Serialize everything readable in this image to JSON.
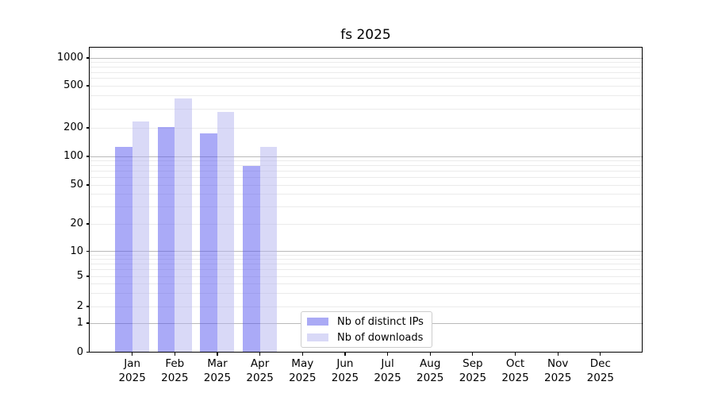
{
  "title": "fs 2025",
  "legend": {
    "items": [
      {
        "label": "Nb of distinct IPs",
        "color": "rgba(85,85,240,0.5)",
        "color_on_white": "#aaaaf5"
      },
      {
        "label": "Nb of downloads",
        "color": "rgba(180,180,240,0.5)",
        "color_on_white": "#d9d9f7"
      }
    ]
  },
  "chart_data": {
    "type": "bar",
    "title": "fs 2025",
    "categories": [
      "Jan 2025",
      "Feb 2025",
      "Mar 2025",
      "Apr 2025",
      "May 2025",
      "Jun 2025",
      "Jul 2025",
      "Aug 2025",
      "Sep 2025",
      "Oct 2025",
      "Nov 2025",
      "Dec 2025"
    ],
    "series": [
      {
        "name": "Nb of distinct IPs",
        "color": "rgba(85,85,240,0.5)",
        "values": [
          125,
          205,
          175,
          80,
          0,
          0,
          0,
          0,
          0,
          0,
          0,
          0
        ]
      },
      {
        "name": "Nb of downloads",
        "color": "rgba(180,180,240,0.5)",
        "values": [
          230,
          380,
          285,
          125,
          0,
          0,
          0,
          0,
          0,
          0,
          0,
          0
        ]
      }
    ],
    "xlabel": "",
    "ylabel": "",
    "y_scale": "symlog-like",
    "ylim": [
      0,
      1300
    ],
    "legend_position": "lower-center-left",
    "grid": {
      "major_color": "#b9b9b9",
      "minor_color": "#ebebeb",
      "major_values": [
        1,
        10,
        100,
        1000
      ],
      "minor_values": [
        2,
        3,
        4,
        5,
        6,
        7,
        8,
        9,
        20,
        30,
        40,
        50,
        60,
        70,
        80,
        90,
        200,
        300,
        400,
        500,
        600,
        700,
        800,
        900
      ]
    },
    "y_axis": {
      "ticks": [
        {
          "value": 0,
          "label": "0",
          "y": 443.5
        },
        {
          "value": 1,
          "label": "1",
          "y": 407
        },
        {
          "value": 2,
          "label": "2",
          "y": 386
        },
        {
          "value": 5,
          "label": "5",
          "y": 348
        },
        {
          "value": 10,
          "label": "10",
          "y": 316.5
        },
        {
          "value": 20,
          "label": "20",
          "y": 282
        },
        {
          "value": 50,
          "label": "50",
          "y": 233
        },
        {
          "value": 100,
          "label": "100",
          "y": 197
        },
        {
          "value": 200,
          "label": "200",
          "y": 161
        },
        {
          "value": 500,
          "label": "500",
          "y": 108
        },
        {
          "value": 1000,
          "label": "1000",
          "y": 73
        }
      ]
    }
  }
}
